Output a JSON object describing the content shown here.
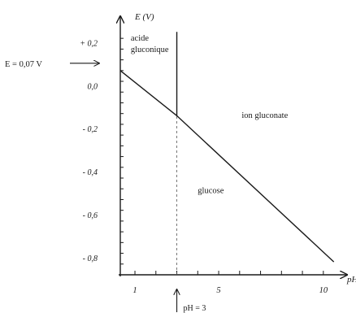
{
  "chart_data": {
    "type": "line",
    "xlabel": "pH",
    "ylabel": "E (V)",
    "xlim": [
      0.3,
      10.9
    ],
    "ylim": [
      -0.88,
      0.3
    ],
    "x_ticks": [
      {
        "value": 1,
        "label": "1"
      },
      {
        "value": 5,
        "label": "5"
      },
      {
        "value": 10,
        "label": "10"
      }
    ],
    "y_ticks": [
      {
        "value": 0.2,
        "label": "+ 0,2"
      },
      {
        "value": 0.0,
        "label": "0,0"
      },
      {
        "value": -0.2,
        "label": "- 0,2"
      },
      {
        "value": -0.4,
        "label": "- 0,4"
      },
      {
        "value": -0.6,
        "label": "- 0,6"
      },
      {
        "value": -0.8,
        "label": "- 0,8"
      }
    ],
    "x_minor_step": 1,
    "y_minor_step": 0.05,
    "boundaries": [
      {
        "type": "segment",
        "points": [
          [
            0.3,
            0.07
          ],
          [
            3,
            -0.14
          ],
          [
            10.5,
            -0.82
          ]
        ]
      },
      {
        "type": "vertical",
        "x": 3,
        "y_from": -0.14,
        "y_to": 0.25
      }
    ],
    "ph_guide": {
      "x": 3,
      "y_from": -0.88,
      "y_to": -0.14
    },
    "regions": [
      {
        "line1": "acide",
        "line2": "gluconique",
        "x": 0.8,
        "y": 0.21
      },
      {
        "line1": "ion gluconate",
        "line2": "",
        "x": 6.1,
        "y": -0.15
      },
      {
        "line1": "glucose",
        "line2": "",
        "x": 4.0,
        "y": -0.5
      }
    ],
    "annotations": {
      "e_label": "E = 0,07 V",
      "e_value": 0.07,
      "ph_label": "pH = 3",
      "ph_value": 3
    }
  }
}
